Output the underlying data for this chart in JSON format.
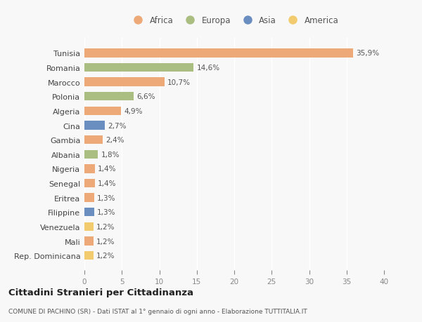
{
  "countries": [
    "Tunisia",
    "Romania",
    "Marocco",
    "Polonia",
    "Algeria",
    "Cina",
    "Gambia",
    "Albania",
    "Nigeria",
    "Senegal",
    "Eritrea",
    "Filippine",
    "Venezuela",
    "Mali",
    "Rep. Dominicana"
  ],
  "values": [
    35.9,
    14.6,
    10.7,
    6.6,
    4.9,
    2.7,
    2.4,
    1.8,
    1.4,
    1.4,
    1.3,
    1.3,
    1.2,
    1.2,
    1.2
  ],
  "labels": [
    "35,9%",
    "14,6%",
    "10,7%",
    "6,6%",
    "4,9%",
    "2,7%",
    "2,4%",
    "1,8%",
    "1,4%",
    "1,4%",
    "1,3%",
    "1,3%",
    "1,2%",
    "1,2%",
    "1,2%"
  ],
  "continents": [
    "Africa",
    "Europa",
    "Africa",
    "Europa",
    "Africa",
    "Asia",
    "Africa",
    "Europa",
    "Africa",
    "Africa",
    "Africa",
    "Asia",
    "America",
    "Africa",
    "America"
  ],
  "continent_colors": {
    "Africa": "#EDAA78",
    "Europa": "#ABBE82",
    "Asia": "#6B8EC0",
    "America": "#F2CB6E"
  },
  "legend_items": [
    "Africa",
    "Europa",
    "Asia",
    "America"
  ],
  "legend_colors": [
    "#EDAA78",
    "#ABBE82",
    "#6B8EC0",
    "#F2CB6E"
  ],
  "xlim": [
    0,
    40
  ],
  "xticks": [
    0,
    5,
    10,
    15,
    20,
    25,
    30,
    35,
    40
  ],
  "title": "Cittadini Stranieri per Cittadinanza",
  "subtitle": "COMUNE DI PACHINO (SR) - Dati ISTAT al 1° gennaio di ogni anno - Elaborazione TUTTITALIA.IT",
  "bg_color": "#f8f8f8",
  "grid_color": "#ffffff",
  "bar_height": 0.6
}
